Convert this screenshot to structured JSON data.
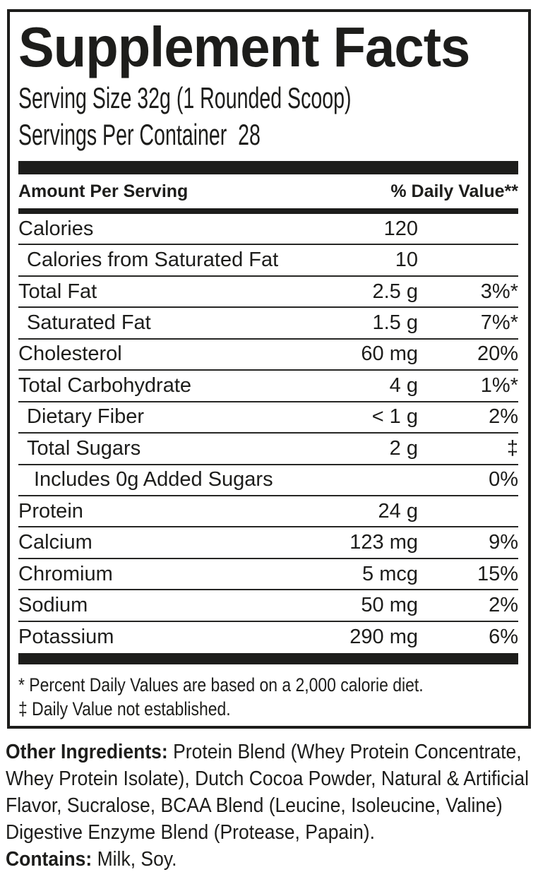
{
  "label": {
    "title": "Supplement Facts",
    "serving_size": "Serving Size 32g (1 Rounded Scoop)",
    "servings_per_container": "Servings Per Container  28",
    "columns": {
      "amount_per_serving": "Amount Per Serving",
      "daily_value": "% Daily Value**"
    },
    "rows": [
      {
        "name": "Calories",
        "amount": "120",
        "dv": "",
        "indent": 0
      },
      {
        "name": "Calories from Saturated Fat",
        "amount": "10",
        "dv": "",
        "indent": 1
      },
      {
        "name": "Total Fat",
        "amount": "2.5 g",
        "dv": "3%*",
        "indent": 0
      },
      {
        "name": "Saturated Fat",
        "amount": "1.5 g",
        "dv": "7%*",
        "indent": 1
      },
      {
        "name": "Cholesterol",
        "amount": "60 mg",
        "dv": "20%",
        "indent": 0
      },
      {
        "name": "Total Carbohydrate",
        "amount": "4 g",
        "dv": "1%*",
        "indent": 0
      },
      {
        "name": "Dietary Fiber",
        "amount": "< 1 g",
        "dv": "2%",
        "indent": 1
      },
      {
        "name": "Total Sugars",
        "amount": "2 g",
        "dv": "‡",
        "indent": 1
      },
      {
        "name": "Includes 0g Added Sugars",
        "amount": "",
        "dv": "0%",
        "indent": 2
      },
      {
        "name": "Protein",
        "amount": "24 g",
        "dv": "",
        "indent": 0
      },
      {
        "name": "Calcium",
        "amount": "123 mg",
        "dv": "9%",
        "indent": 0
      },
      {
        "name": "Chromium",
        "amount": "5 mcg",
        "dv": "15%",
        "indent": 0
      },
      {
        "name": "Sodium",
        "amount": "50 mg",
        "dv": "2%",
        "indent": 0
      },
      {
        "name": "Potassium",
        "amount": "290 mg",
        "dv": "6%",
        "indent": 0
      }
    ],
    "footnotes": [
      "* Percent Daily Values are based on a 2,000 calorie diet.",
      "‡ Daily Value not established."
    ]
  },
  "other_ingredients": {
    "label": "Other Ingredients:",
    "text": " Protein Blend (Whey Protein Concentrate, Whey Protein Isolate), Dutch Cocoa Powder, Natural & Artificial Flavor, Sucralose, BCAA Blend (Leucine, Isoleucine, Valine) Digestive Enzyme Blend (Protease, Papain)."
  },
  "contains": {
    "label": "Contains:",
    "text": " Milk, Soy."
  },
  "colors": {
    "ink": "#1d1d1b",
    "background": "#ffffff"
  }
}
